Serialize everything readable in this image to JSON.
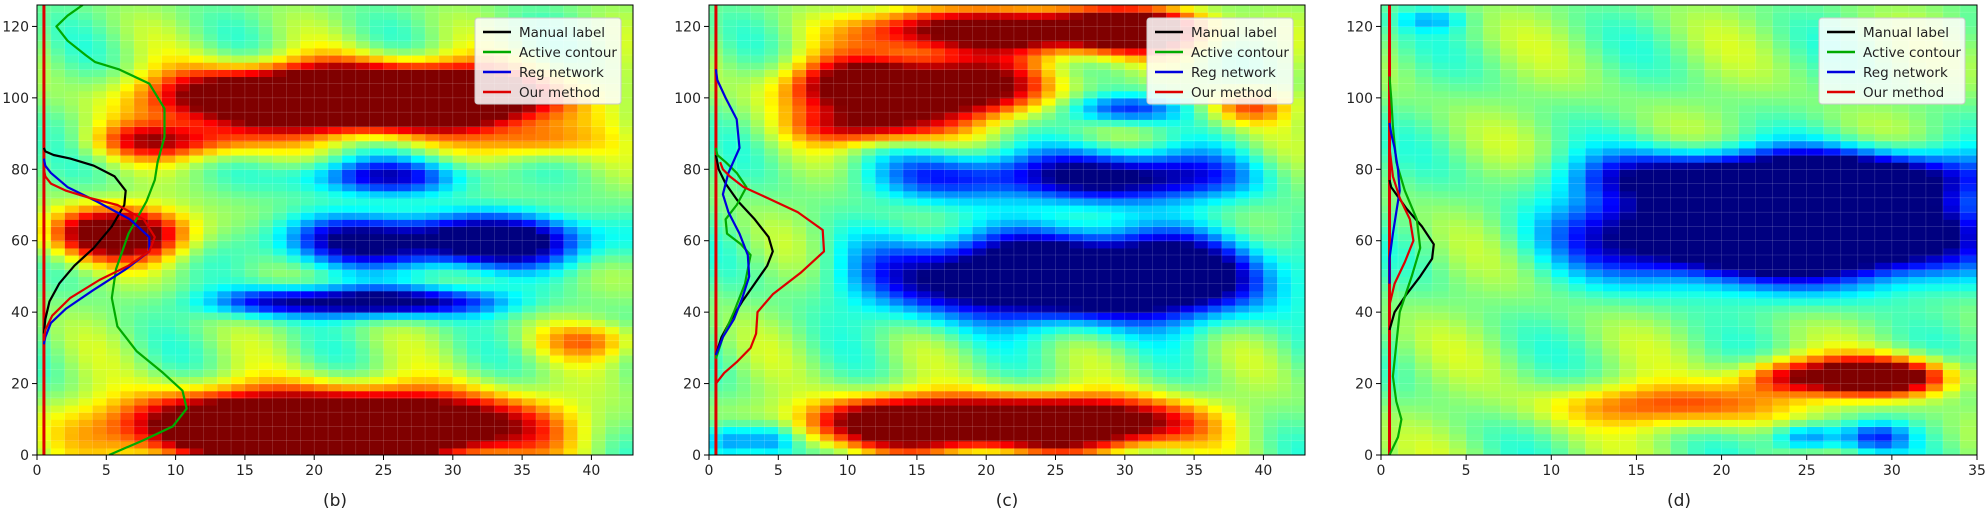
{
  "chart_data": [
    {
      "type": "heatmap",
      "caption": "(b)",
      "xlim": [
        0,
        43
      ],
      "ylim": [
        0,
        126
      ],
      "xticks": [
        0,
        5,
        10,
        15,
        20,
        25,
        30,
        35,
        40
      ],
      "yticks": [
        0,
        20,
        40,
        60,
        80,
        100,
        120
      ],
      "grid": true,
      "legend": "top-right",
      "heatmap_bands": [
        {
          "y": 100,
          "ys": 8,
          "xs": [
            14,
            20,
            24,
            28,
            32
          ],
          "values": [
            1.0,
            1.0,
            1.0,
            1.0,
            0.9
          ],
          "sx": 7
        },
        {
          "y": 8,
          "ys": 9,
          "xs": [
            12,
            18,
            24,
            30
          ],
          "values": [
            1.0,
            1.0,
            1.0,
            0.95
          ],
          "sx": 8
        },
        {
          "y": 62,
          "ys": 7,
          "xs": [
            4,
            8
          ],
          "values": [
            0.85,
            0.85
          ],
          "sx": 4
        },
        {
          "y": 88,
          "ys": 5,
          "xs": [
            8,
            13
          ],
          "values": [
            0.65,
            0.5
          ],
          "sx": 4
        },
        {
          "y": 88,
          "ys": 5,
          "xs": [
            36
          ],
          "values": [
            0.55
          ],
          "sx": 4
        },
        {
          "y": 60,
          "ys": 7,
          "xs": [
            22,
            30,
            36
          ],
          "values": [
            -0.75,
            -0.95,
            -0.7
          ],
          "sx": 6
        },
        {
          "y": 78,
          "ys": 5,
          "xs": [
            25
          ],
          "values": [
            -0.8
          ],
          "sx": 6
        },
        {
          "y": 43,
          "ys": 4,
          "xs": [
            17,
            24,
            30
          ],
          "values": [
            -0.75,
            -0.95,
            -0.6
          ],
          "sx": 5
        },
        {
          "y": 32,
          "ys": 5,
          "xs": [
            40
          ],
          "values": [
            0.45
          ],
          "sx": 4
        }
      ],
      "series": [
        {
          "name": "Manual label",
          "color": "#000000",
          "x": [
            0.5,
            0.6,
            0.9,
            1.6,
            2.7,
            4.1,
            5.4,
            6.3,
            6.4,
            5.6,
            4.1,
            2.4,
            1.2,
            0.6,
            0.5
          ],
          "y": [
            34,
            38,
            43,
            48,
            53,
            58,
            64,
            70,
            74,
            78,
            81,
            83,
            84,
            85,
            86
          ]
        },
        {
          "name": "Active contour",
          "color": "#00aa00",
          "x": [
            5.2,
            7.6,
            9.8,
            10.8,
            10.5,
            9.1,
            7.2,
            5.8,
            5.4,
            5.7,
            6.6,
            7.9,
            8.5,
            8.7,
            9.2,
            9.2,
            8.1,
            5.9,
            4.2,
            3.5,
            2.2,
            1.4,
            2.2,
            3.3
          ],
          "y": [
            0,
            4,
            8,
            13,
            18,
            23,
            29,
            36,
            44,
            52,
            62,
            71,
            77,
            82,
            89,
            97,
            104,
            108,
            110,
            112,
            116,
            120,
            123,
            126
          ]
        },
        {
          "name": "Reg network",
          "color": "#0000dd",
          "x": [
            0.5,
            0.6,
            1.0,
            2.1,
            4.0,
            6.4,
            8.1,
            8.1,
            6.7,
            4.3,
            2.2,
            1.0,
            0.6,
            0.5
          ],
          "y": [
            31,
            33,
            37,
            41,
            46,
            52,
            57,
            61,
            66,
            71,
            75,
            79,
            81,
            83
          ]
        },
        {
          "name": "Our method",
          "color": "#dd0000",
          "x": [
            0.5,
            0.6,
            1.1,
            2.4,
            4.5,
            6.6,
            8.1,
            8.5,
            7.7,
            5.8,
            3.8,
            2.1,
            1.0,
            0.6,
            0.5
          ],
          "y": [
            32,
            35,
            39,
            44,
            49,
            53,
            57,
            61,
            66,
            70,
            72,
            74,
            76,
            78,
            80
          ]
        }
      ]
    },
    {
      "type": "heatmap",
      "caption": "(c)",
      "xlim": [
        0,
        43
      ],
      "ylim": [
        0,
        126
      ],
      "xticks": [
        0,
        5,
        10,
        15,
        20,
        25,
        30,
        35,
        40
      ],
      "yticks": [
        0,
        20,
        40,
        60,
        80,
        100,
        120
      ],
      "grid": true,
      "legend": "top-right",
      "heatmap_bands": [
        {
          "y": 9,
          "ys": 7,
          "xs": [
            12,
            18,
            24,
            30
          ],
          "values": [
            1.0,
            1.0,
            1.0,
            1.0
          ],
          "sx": 6
        },
        {
          "y": 103,
          "ys": 8,
          "xs": [
            10,
            15,
            20
          ],
          "values": [
            1.0,
            1.0,
            0.9
          ],
          "sx": 5
        },
        {
          "y": 119,
          "ys": 6,
          "xs": [
            15,
            22,
            28,
            32
          ],
          "values": [
            0.9,
            0.9,
            1.0,
            0.9
          ],
          "sx": 5
        },
        {
          "y": 92,
          "ys": 5,
          "xs": [
            10,
            14
          ],
          "values": [
            0.6,
            0.5
          ],
          "sx": 4
        },
        {
          "y": 50,
          "ys": 11,
          "xs": [
            17,
            24,
            30,
            35
          ],
          "values": [
            -0.8,
            -1.0,
            -1.0,
            -0.8
          ],
          "sx": 7
        },
        {
          "y": 78,
          "ys": 7,
          "xs": [
            18,
            28,
            34
          ],
          "values": [
            -0.7,
            -0.85,
            -0.6
          ],
          "sx": 6
        },
        {
          "y": 97,
          "ys": 4,
          "xs": [
            30
          ],
          "values": [
            -0.7
          ],
          "sx": 4
        },
        {
          "y": 4,
          "ys": 5,
          "xs": [
            1.5,
            4.5
          ],
          "values": [
            -0.55,
            -0.55
          ],
          "sx": 2
        },
        {
          "y": 98,
          "ys": 5,
          "xs": [
            39
          ],
          "values": [
            0.6
          ],
          "sx": 3
        }
      ],
      "series": [
        {
          "name": "Manual label",
          "color": "#000000",
          "x": [
            0.5,
            0.9,
            1.6,
            2.4,
            3.3,
            4.2,
            4.6,
            4.3,
            3.3,
            2.1,
            1.2,
            0.7,
            0.5
          ],
          "y": [
            28,
            33,
            38,
            43,
            48,
            53,
            57,
            61,
            66,
            71,
            76,
            80,
            84
          ]
        },
        {
          "name": "Active contour",
          "color": "#00aa00",
          "x": [
            0.5,
            1.0,
            1.8,
            2.6,
            3.0,
            2.3,
            1.3,
            1.2,
            2.0,
            2.7,
            2.0,
            1.2,
            0.6,
            0.5
          ],
          "y": [
            27,
            33,
            40,
            48,
            56,
            59,
            62,
            66,
            70,
            75,
            79,
            82,
            84,
            86
          ]
        },
        {
          "name": "Reg network",
          "color": "#0000dd",
          "x": [
            0.5,
            1.0,
            1.8,
            2.4,
            2.9,
            2.8,
            2.2,
            1.4,
            1.0,
            1.4,
            2.2,
            2.0,
            1.2,
            0.6,
            0.5
          ],
          "y": [
            28,
            33,
            38,
            44,
            50,
            56,
            62,
            68,
            73,
            79,
            86,
            94,
            100,
            105,
            108
          ]
        },
        {
          "name": "Our method",
          "color": "#dd0000",
          "x": [
            0.5,
            1.1,
            2.0,
            3.0,
            3.4,
            3.5,
            4.6,
            6.6,
            8.3,
            8.2,
            6.4,
            4.2,
            2.5,
            1.5,
            1.0,
            0.8
          ],
          "y": [
            20,
            23,
            26,
            30,
            34,
            40,
            45,
            51,
            57,
            63,
            68,
            72,
            75,
            78,
            80,
            82
          ]
        }
      ]
    },
    {
      "type": "heatmap",
      "caption": "(d)",
      "xlim": [
        0,
        35
      ],
      "ylim": [
        0,
        126
      ],
      "xticks": [
        0,
        5,
        10,
        15,
        20,
        25,
        30,
        35
      ],
      "yticks": [
        0,
        20,
        40,
        60,
        80,
        100,
        120
      ],
      "grid": true,
      "legend": "top-right",
      "heatmap_bands": [
        {
          "y": 62,
          "ys": 12,
          "xs": [
            16,
            21,
            26,
            30
          ],
          "values": [
            -0.85,
            -1.0,
            -1.0,
            -0.95
          ],
          "sx": 6
        },
        {
          "y": 78,
          "ys": 7,
          "xs": [
            17,
            24,
            30
          ],
          "values": [
            -0.75,
            -0.9,
            -0.95
          ],
          "sx": 6
        },
        {
          "y": 22,
          "ys": 5,
          "xs": [
            24,
            28,
            31
          ],
          "values": [
            0.8,
            1.0,
            0.85
          ],
          "sx": 3
        },
        {
          "y": 14,
          "ys": 6,
          "xs": [
            14,
            20
          ],
          "values": [
            0.4,
            0.45
          ],
          "sx": 5
        },
        {
          "y": 5,
          "ys": 4,
          "xs": [
            25,
            29
          ],
          "values": [
            -0.6,
            -0.6
          ],
          "sx": 2
        },
        {
          "y": 122,
          "ys": 3,
          "xs": [
            3
          ],
          "values": [
            -0.3
          ],
          "sx": 2
        }
      ],
      "series": [
        {
          "name": "Manual label",
          "color": "#000000",
          "x": [
            0.5,
            0.8,
            1.5,
            2.3,
            3.0,
            3.1,
            2.4,
            1.5,
            0.9,
            0.6,
            0.5
          ],
          "y": [
            35,
            40,
            45,
            50,
            55,
            59,
            64,
            69,
            73,
            75,
            77
          ]
        },
        {
          "name": "Active contour",
          "color": "#00aa00",
          "x": [
            0.5,
            1.0,
            1.2,
            0.9,
            0.7,
            1.1,
            1.8,
            2.3,
            2.1,
            1.4,
            0.9,
            0.7,
            0.6,
            0.5
          ],
          "y": [
            0,
            5,
            10,
            15,
            22,
            40,
            50,
            58,
            66,
            74,
            82,
            92,
            100,
            106
          ]
        },
        {
          "name": "Reg network",
          "color": "#0000dd",
          "x": [
            0.5,
            0.5,
            0.7,
            0.9,
            1.1,
            1.0,
            0.8,
            0.6,
            0.5
          ],
          "y": [
            48,
            55,
            62,
            68,
            74,
            80,
            86,
            90,
            93
          ]
        },
        {
          "name": "Our method",
          "color": "#dd0000",
          "x": [
            0.5,
            0.8,
            1.4,
            1.9,
            1.7,
            1.1,
            0.7,
            0.5
          ],
          "y": [
            42,
            48,
            54,
            60,
            66,
            72,
            78,
            86
          ]
        }
      ]
    }
  ]
}
